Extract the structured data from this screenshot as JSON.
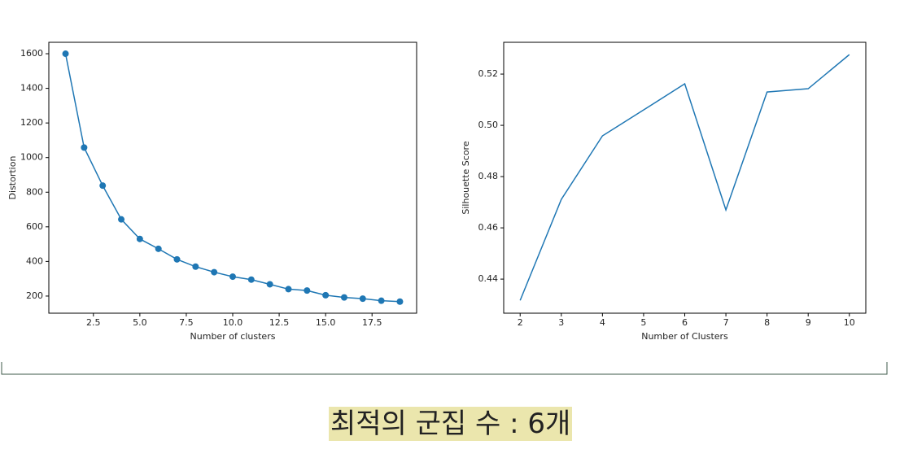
{
  "chart_data": [
    {
      "type": "line",
      "x": [
        1,
        2,
        3,
        4,
        5,
        6,
        7,
        8,
        9,
        10,
        11,
        12,
        13,
        14,
        15,
        16,
        17,
        18,
        19
      ],
      "values": [
        1600,
        1058,
        838,
        643,
        530,
        473,
        412,
        370,
        338,
        312,
        295,
        268,
        240,
        232,
        205,
        192,
        185,
        173,
        168
      ],
      "color": "#1f77b4",
      "markers": true,
      "xlabel": "Number of clusters",
      "ylabel": "Distortion",
      "xlim": [
        0.1,
        19.9
      ],
      "ylim": [
        101,
        1666
      ],
      "xticks": [
        2.5,
        {
          "value": 5,
          "label": "5.0"
        },
        7.5,
        {
          "value": 10,
          "label": "10.0"
        },
        12.5,
        {
          "value": 15,
          "label": "15.0"
        },
        17.5
      ],
      "yticks": [
        200,
        400,
        600,
        800,
        1000,
        1200,
        1400,
        1600
      ]
    },
    {
      "type": "line",
      "x": [
        2,
        3,
        4,
        5,
        6,
        7,
        8,
        9,
        10
      ],
      "values": [
        0.4317,
        0.4711,
        0.4959,
        0.506,
        0.5162,
        0.467,
        0.513,
        0.5143,
        0.5276
      ],
      "color": "#1f77b4",
      "markers": false,
      "xlabel": "Number of Clusters",
      "ylabel": "Silhouette Score",
      "xlim": [
        1.6,
        10.4
      ],
      "ylim": [
        0.4267,
        0.5324
      ],
      "xticks": [
        2,
        3,
        4,
        5,
        6,
        7,
        8,
        9,
        10
      ],
      "yticks": [
        0.44,
        0.46,
        0.48,
        {
          "value": 0.5,
          "label": "0.50"
        },
        0.52
      ]
    }
  ],
  "caption": "최적의 군집 수 : 6개"
}
